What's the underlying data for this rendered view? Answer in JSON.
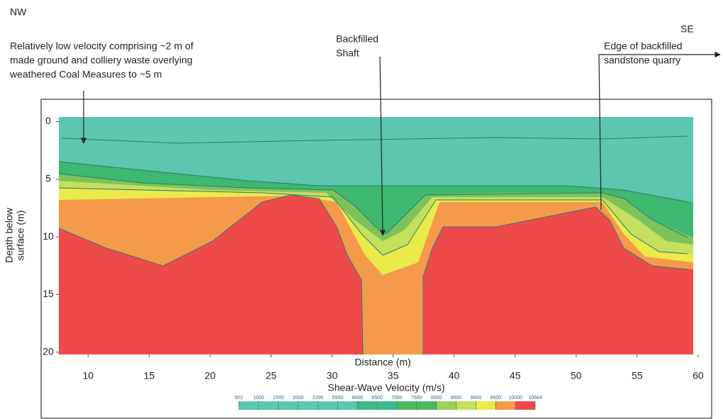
{
  "chart_data": {
    "type": "section",
    "corner_labels": {
      "left": "NW",
      "right": "SE"
    },
    "annotations": [
      {
        "lines": [
          "Relatively low velocity comprising ~2 m of",
          "made ground and colliery waste overlying",
          "weathered Coal Measures to ~5 m"
        ]
      },
      {
        "lines": [
          "Backfilled",
          "Shaft"
        ]
      },
      {
        "lines": [
          "Edge of backfilled",
          "sandstone quarry"
        ]
      }
    ],
    "x_label": "Distance (m)",
    "y_label": [
      "Depth below",
      "surface (m)"
    ],
    "xlim": [
      7.6,
      59.6
    ],
    "xticks": [
      10,
      15,
      20,
      25,
      30,
      35,
      40,
      45,
      50,
      55,
      60
    ],
    "ylim": [
      -0.4,
      20.2
    ],
    "yticks": [
      0,
      5,
      10,
      15,
      20
    ],
    "colorbar": {
      "title": "Shear-Wave Velocity (m/s)",
      "ticks": [
        502,
        1000,
        1500,
        2000,
        2200,
        5500,
        6000,
        6500,
        7000,
        7500,
        8000,
        8500,
        9000,
        9500,
        10000,
        10664
      ],
      "colors": [
        "#5cc6ae",
        "#5cc6ae",
        "#5cc6ae",
        "#5cc6ae",
        "#5cc6ae",
        "#5cc6ae",
        "#3fb88a",
        "#3fb88a",
        "#4cb85e",
        "#4cb85e",
        "#9fd05a",
        "#c6df5e",
        "#eaea4a",
        "#f59a4a",
        "#ee4a4a"
      ]
    }
  }
}
